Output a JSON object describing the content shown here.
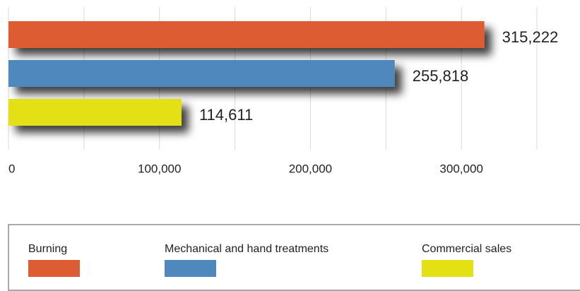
{
  "chart_data": {
    "type": "bar",
    "orientation": "horizontal",
    "series": [
      {
        "name": "Burning",
        "color": "#dd5c33",
        "values": [
          315222
        ],
        "value_labels": [
          "315,222"
        ]
      },
      {
        "name": "Mechanical and hand treatments",
        "color": "#4f88bd",
        "values": [
          255818
        ],
        "value_labels": [
          "255,818"
        ]
      },
      {
        "name": "Commercial sales",
        "color": "#e3e014",
        "values": [
          114611
        ],
        "value_labels": [
          "114,611"
        ]
      }
    ],
    "xlim": [
      0,
      350000
    ],
    "xticks": [
      0,
      {
        "value": 100000,
        "label": "100,000"
      },
      {
        "value": 200000,
        "label": "200,000"
      },
      {
        "value": 300000,
        "label": "300,000"
      }
    ],
    "minor_xticks": [
      50000,
      150000,
      250000,
      350000
    ],
    "grid": true,
    "legend": "bottom",
    "shadow": true
  }
}
